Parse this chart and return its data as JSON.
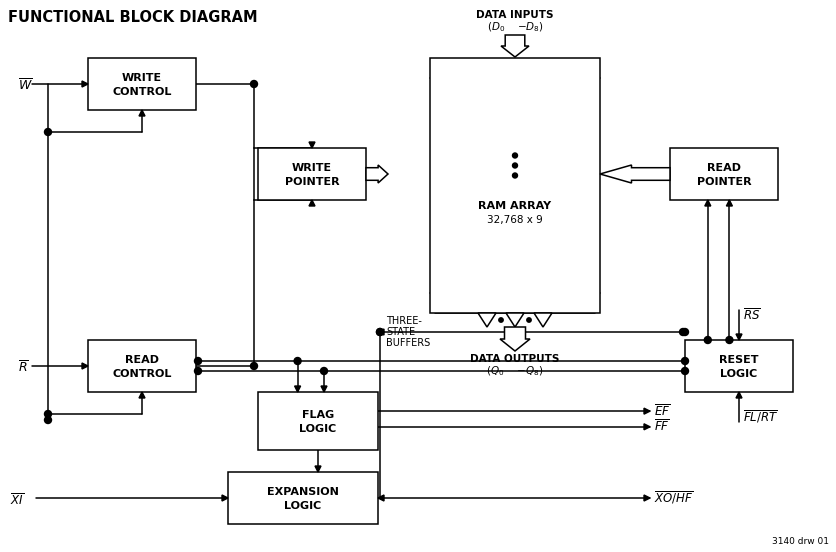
{
  "title": "FUNCTIONAL BLOCK DIAGRAM",
  "bg_color": "#ffffff",
  "note": "3140 drw 01",
  "fig_w": 8.37,
  "fig_h": 5.52,
  "boxes": {
    "wc": [
      88,
      58,
      108,
      52
    ],
    "wp": [
      258,
      148,
      108,
      52
    ],
    "ram": [
      430,
      58,
      170,
      255
    ],
    "rp": [
      670,
      148,
      108,
      52
    ],
    "rc": [
      88,
      340,
      108,
      52
    ],
    "fl": [
      258,
      392,
      120,
      58
    ],
    "el": [
      228,
      472,
      150,
      52
    ],
    "rl": [
      685,
      340,
      108,
      52
    ]
  }
}
